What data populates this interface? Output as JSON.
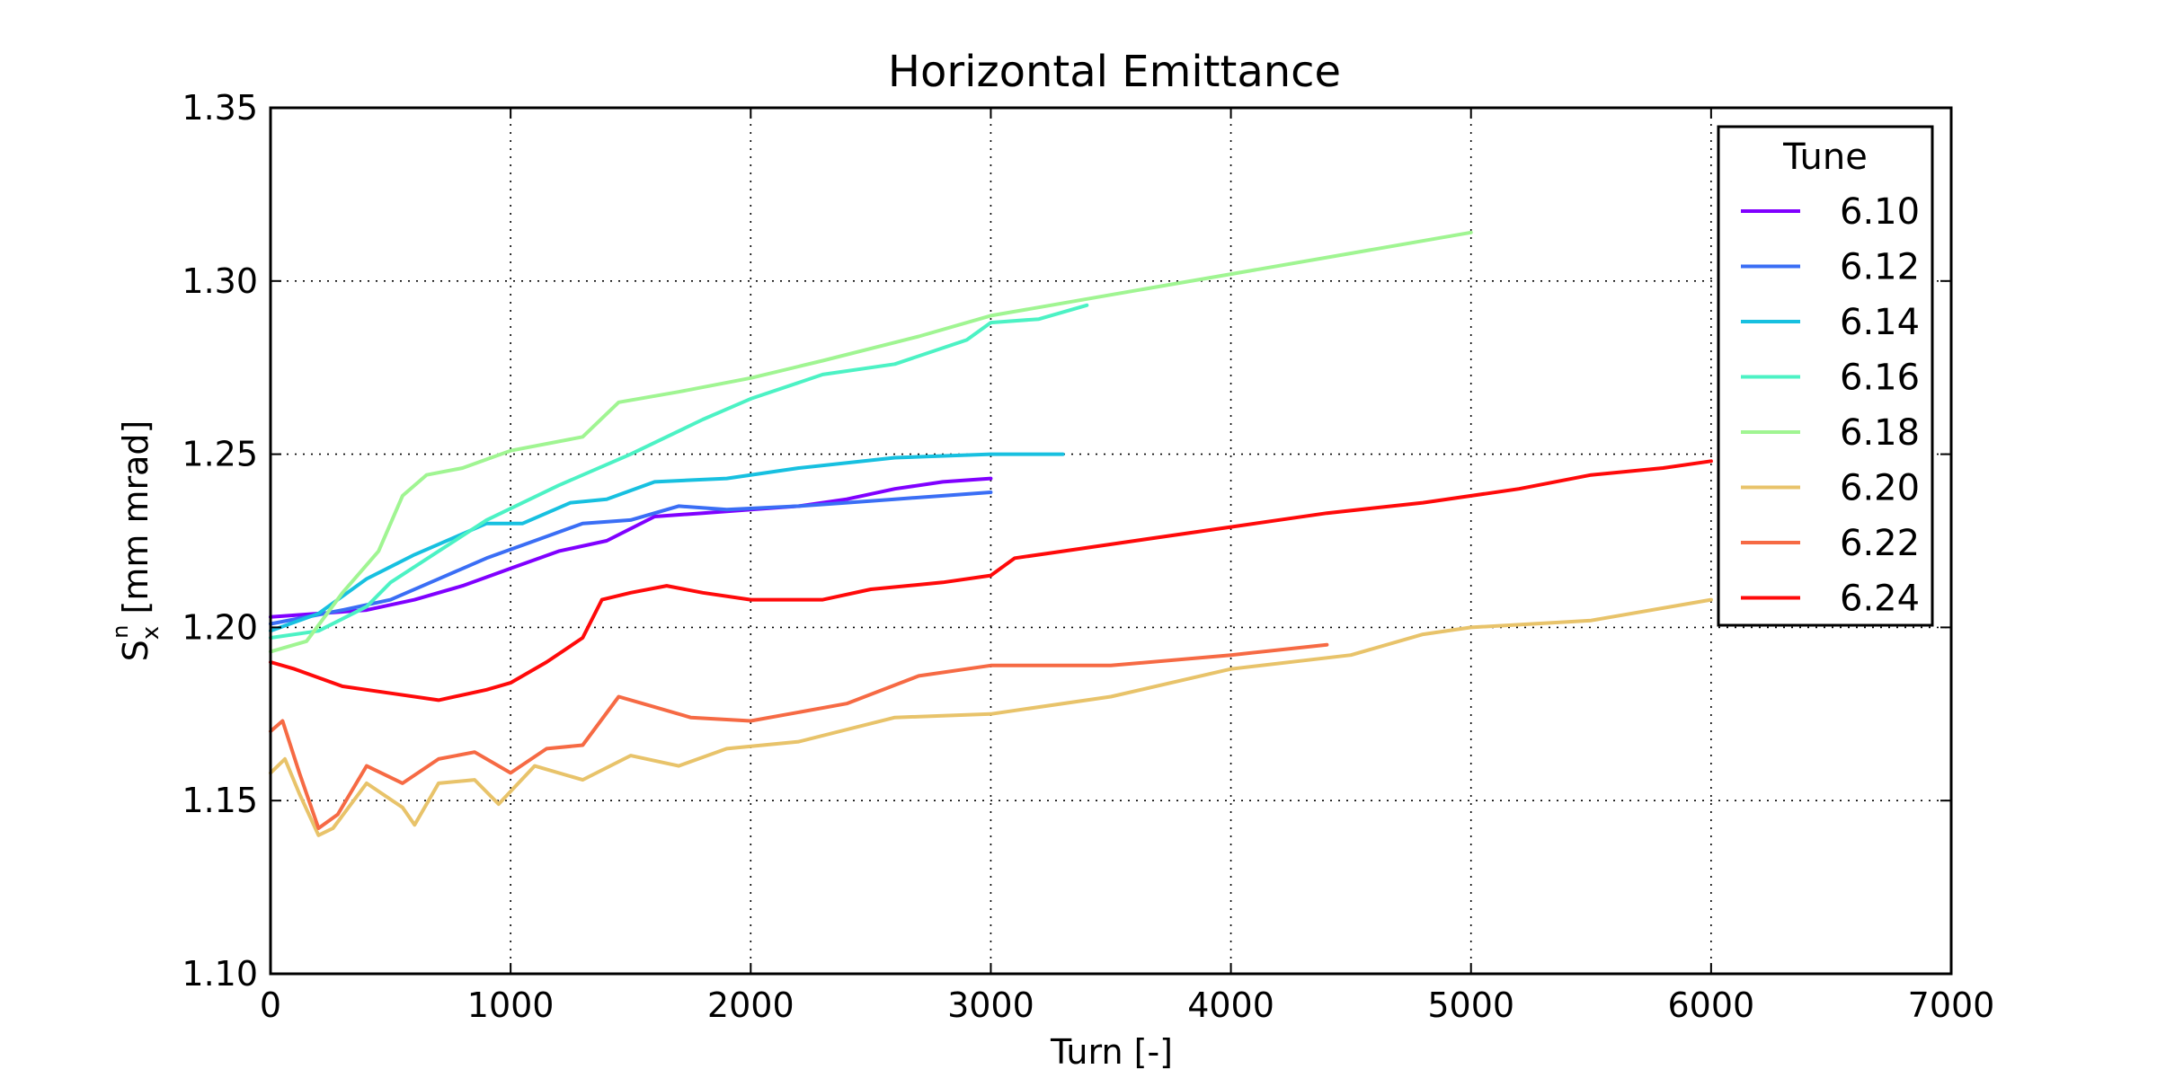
{
  "chart_data": {
    "type": "line",
    "title": "Horizontal Emittance",
    "xlabel": "Turn [-]",
    "ylabel_main": "S",
    "ylabel_sub": "x",
    "ylabel_sup": "n",
    "ylabel_rest": " [mm mrad]",
    "xlim": [
      0,
      7000
    ],
    "ylim": [
      1.1,
      1.35
    ],
    "xticks": [
      0,
      1000,
      2000,
      3000,
      4000,
      5000,
      6000,
      7000
    ],
    "yticks": [
      1.1,
      1.15,
      1.2,
      1.25,
      1.3,
      1.35
    ],
    "xtick_labels": [
      "0",
      "1000",
      "2000",
      "3000",
      "4000",
      "5000",
      "6000",
      "7000"
    ],
    "ytick_labels": [
      "1.10",
      "1.15",
      "1.20",
      "1.25",
      "1.30",
      "1.35"
    ],
    "grid": true,
    "legend": {
      "title": "Tune",
      "placement": "top-right"
    },
    "series": [
      {
        "name": "6.10",
        "color": "#8000ff",
        "points": [
          [
            0,
            1.203
          ],
          [
            400,
            1.205
          ],
          [
            600,
            1.208
          ],
          [
            800,
            1.212
          ],
          [
            1000,
            1.217
          ],
          [
            1200,
            1.222
          ],
          [
            1400,
            1.225
          ],
          [
            1600,
            1.232
          ],
          [
            1800,
            1.233
          ],
          [
            2000,
            1.234
          ],
          [
            2200,
            1.235
          ],
          [
            2400,
            1.237
          ],
          [
            2600,
            1.24
          ],
          [
            2800,
            1.242
          ],
          [
            3000,
            1.243
          ]
        ]
      },
      {
        "name": "6.12",
        "color": "#3a6ef5",
        "points": [
          [
            0,
            1.201
          ],
          [
            300,
            1.205
          ],
          [
            500,
            1.208
          ],
          [
            700,
            1.214
          ],
          [
            900,
            1.22
          ],
          [
            1100,
            1.225
          ],
          [
            1300,
            1.23
          ],
          [
            1500,
            1.231
          ],
          [
            1700,
            1.235
          ],
          [
            1900,
            1.234
          ],
          [
            2200,
            1.235
          ],
          [
            2400,
            1.236
          ],
          [
            2600,
            1.237
          ],
          [
            2800,
            1.238
          ],
          [
            3000,
            1.239
          ]
        ]
      },
      {
        "name": "6.14",
        "color": "#17c0e0",
        "points": [
          [
            0,
            1.199
          ],
          [
            200,
            1.204
          ],
          [
            400,
            1.214
          ],
          [
            600,
            1.221
          ],
          [
            800,
            1.227
          ],
          [
            900,
            1.23
          ],
          [
            1050,
            1.23
          ],
          [
            1250,
            1.236
          ],
          [
            1400,
            1.237
          ],
          [
            1600,
            1.242
          ],
          [
            1900,
            1.243
          ],
          [
            2200,
            1.246
          ],
          [
            2600,
            1.249
          ],
          [
            3000,
            1.25
          ],
          [
            3300,
            1.25
          ]
        ]
      },
      {
        "name": "6.16",
        "color": "#4cf2c4",
        "points": [
          [
            0,
            1.197
          ],
          [
            200,
            1.199
          ],
          [
            400,
            1.206
          ],
          [
            500,
            1.213
          ],
          [
            700,
            1.222
          ],
          [
            900,
            1.231
          ],
          [
            1200,
            1.241
          ],
          [
            1500,
            1.25
          ],
          [
            1800,
            1.26
          ],
          [
            2000,
            1.266
          ],
          [
            2300,
            1.273
          ],
          [
            2600,
            1.276
          ],
          [
            2900,
            1.283
          ],
          [
            3000,
            1.288
          ],
          [
            3200,
            1.289
          ],
          [
            3400,
            1.293
          ]
        ]
      },
      {
        "name": "6.18",
        "color": "#a0f592",
        "points": [
          [
            0,
            1.193
          ],
          [
            150,
            1.196
          ],
          [
            300,
            1.21
          ],
          [
            450,
            1.222
          ],
          [
            550,
            1.238
          ],
          [
            650,
            1.244
          ],
          [
            800,
            1.246
          ],
          [
            1000,
            1.251
          ],
          [
            1300,
            1.255
          ],
          [
            1450,
            1.265
          ],
          [
            1700,
            1.268
          ],
          [
            2000,
            1.272
          ],
          [
            2300,
            1.277
          ],
          [
            2700,
            1.284
          ],
          [
            3000,
            1.29
          ],
          [
            3500,
            1.296
          ],
          [
            4000,
            1.302
          ],
          [
            4500,
            1.308
          ],
          [
            5000,
            1.314
          ]
        ]
      },
      {
        "name": "6.20",
        "color": "#e8c36a",
        "points": [
          [
            0,
            1.158
          ],
          [
            60,
            1.162
          ],
          [
            120,
            1.152
          ],
          [
            200,
            1.14
          ],
          [
            260,
            1.142
          ],
          [
            400,
            1.155
          ],
          [
            550,
            1.148
          ],
          [
            600,
            1.143
          ],
          [
            700,
            1.155
          ],
          [
            850,
            1.156
          ],
          [
            950,
            1.149
          ],
          [
            1100,
            1.16
          ],
          [
            1300,
            1.156
          ],
          [
            1500,
            1.163
          ],
          [
            1700,
            1.16
          ],
          [
            1900,
            1.165
          ],
          [
            2200,
            1.167
          ],
          [
            2600,
            1.174
          ],
          [
            3000,
            1.175
          ],
          [
            3500,
            1.18
          ],
          [
            4000,
            1.188
          ],
          [
            4500,
            1.192
          ],
          [
            4800,
            1.198
          ],
          [
            5000,
            1.2
          ],
          [
            5500,
            1.202
          ],
          [
            6000,
            1.208
          ]
        ]
      },
      {
        "name": "6.22",
        "color": "#f66a44",
        "points": [
          [
            0,
            1.17
          ],
          [
            50,
            1.173
          ],
          [
            120,
            1.158
          ],
          [
            200,
            1.142
          ],
          [
            280,
            1.146
          ],
          [
            400,
            1.16
          ],
          [
            550,
            1.155
          ],
          [
            700,
            1.162
          ],
          [
            850,
            1.164
          ],
          [
            1000,
            1.158
          ],
          [
            1150,
            1.165
          ],
          [
            1300,
            1.166
          ],
          [
            1450,
            1.18
          ],
          [
            1550,
            1.178
          ],
          [
            1750,
            1.174
          ],
          [
            2000,
            1.173
          ],
          [
            2400,
            1.178
          ],
          [
            2700,
            1.186
          ],
          [
            3000,
            1.189
          ],
          [
            3500,
            1.189
          ],
          [
            4000,
            1.192
          ],
          [
            4400,
            1.195
          ]
        ]
      },
      {
        "name": "6.24",
        "color": "#ff0a0a",
        "points": [
          [
            0,
            1.19
          ],
          [
            100,
            1.188
          ],
          [
            300,
            1.183
          ],
          [
            500,
            1.181
          ],
          [
            700,
            1.179
          ],
          [
            900,
            1.182
          ],
          [
            1000,
            1.184
          ],
          [
            1150,
            1.19
          ],
          [
            1300,
            1.197
          ],
          [
            1380,
            1.208
          ],
          [
            1500,
            1.21
          ],
          [
            1650,
            1.212
          ],
          [
            1800,
            1.21
          ],
          [
            2000,
            1.208
          ],
          [
            2300,
            1.208
          ],
          [
            2500,
            1.211
          ],
          [
            2800,
            1.213
          ],
          [
            3000,
            1.215
          ],
          [
            3100,
            1.22
          ],
          [
            3300,
            1.222
          ],
          [
            3600,
            1.225
          ],
          [
            4000,
            1.229
          ],
          [
            4400,
            1.233
          ],
          [
            4800,
            1.236
          ],
          [
            5200,
            1.24
          ],
          [
            5500,
            1.244
          ],
          [
            5800,
            1.246
          ],
          [
            6000,
            1.248
          ]
        ]
      }
    ]
  }
}
